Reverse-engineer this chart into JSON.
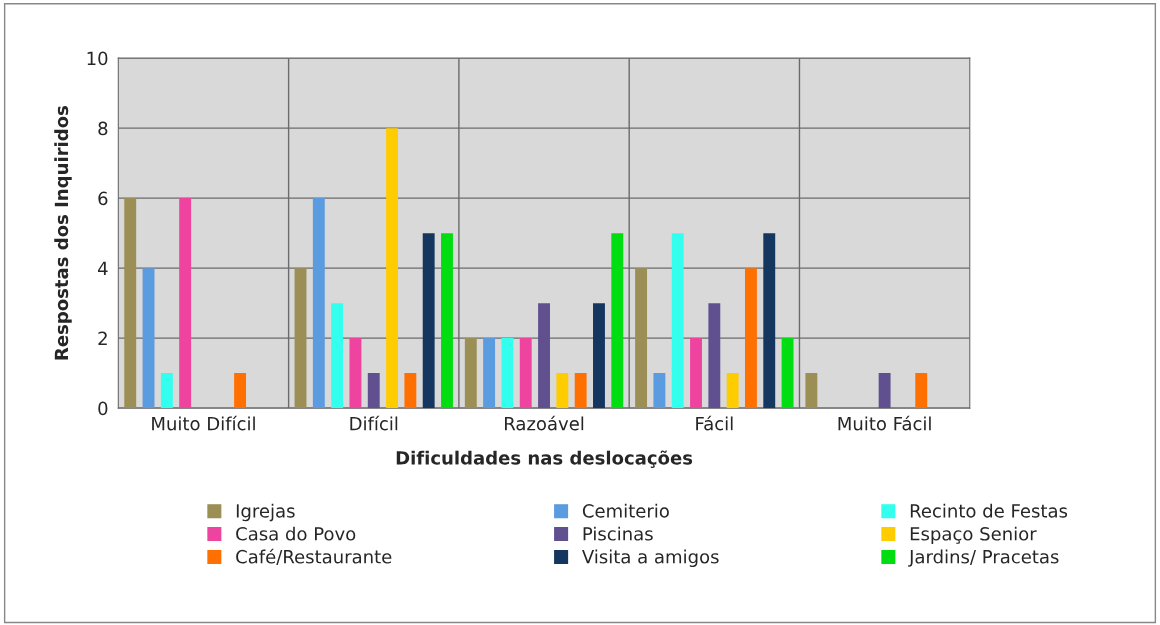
{
  "chart_data": {
    "type": "bar",
    "xlabel": "Dificuldades nas deslocações",
    "ylabel": "Respostas dos Inquiridos",
    "categories": [
      "Muito Difícil",
      "Difícil",
      "Razoável",
      "Fácil",
      "Muito Fácil"
    ],
    "series": [
      {
        "name": "Igrejas",
        "color": "#9b8f55",
        "values": [
          6,
          4,
          2,
          4,
          1
        ]
      },
      {
        "name": "Cemiterio",
        "color": "#5b9bdf",
        "values": [
          4,
          6,
          2,
          1,
          0
        ]
      },
      {
        "name": "Recinto de Festas",
        "color": "#33ffee",
        "values": [
          1,
          3,
          2,
          5,
          0
        ]
      },
      {
        "name": "Casa do Povo",
        "color": "#ee44a0",
        "values": [
          6,
          2,
          2,
          2,
          0
        ]
      },
      {
        "name": "Piscinas",
        "color": "#60508f",
        "values": [
          0,
          1,
          3,
          3,
          1
        ]
      },
      {
        "name": "Espaço Senior",
        "color": "#ffcc00",
        "values": [
          0,
          8,
          1,
          1,
          0
        ]
      },
      {
        "name": "Café/Restaurante",
        "color": "#ff7000",
        "values": [
          1,
          1,
          1,
          4,
          1
        ]
      },
      {
        "name": "Visita a amigos",
        "color": "#15365e",
        "values": [
          0,
          5,
          3,
          5,
          0
        ]
      },
      {
        "name": "Jardins/ Pracetas",
        "color": "#00dd11",
        "values": [
          0,
          5,
          5,
          2,
          0
        ]
      }
    ],
    "ylim": [
      0,
      10
    ],
    "yticks": [
      0,
      2,
      4,
      6,
      8,
      10
    ],
    "grid": true,
    "legend": "bottom"
  }
}
